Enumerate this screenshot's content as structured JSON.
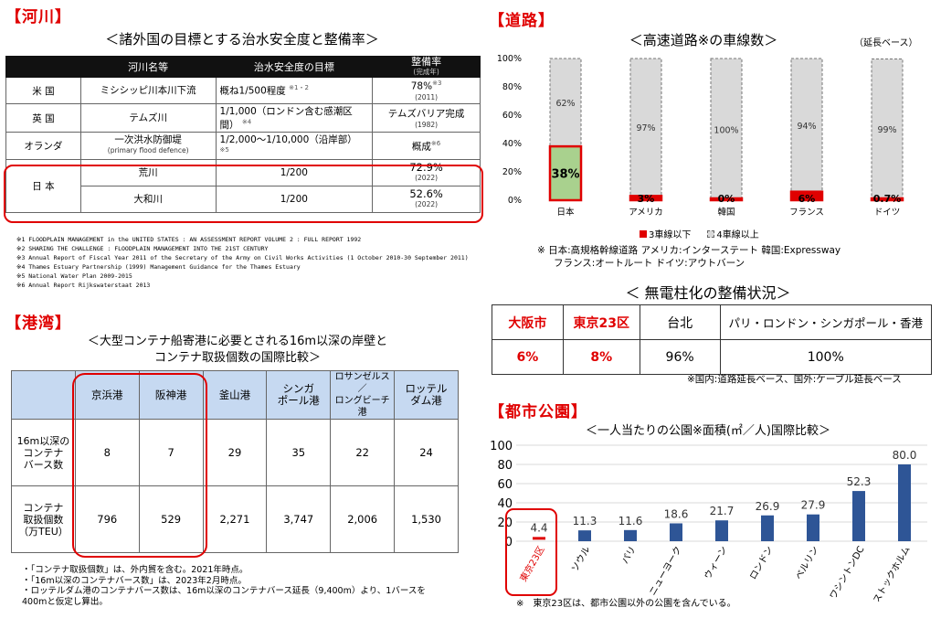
{
  "river": {
    "heading": "【河川】",
    "title": "＜諸外国の目標とする治水安全度と整備率＞",
    "headers": [
      "河川名等",
      "治水安全度の目標",
      "整備率",
      "(完成年)"
    ],
    "rows": [
      {
        "country": "米 国",
        "river": "ミシシッピ川本川下流",
        "river_sub": "",
        "target": "概ね1/500程度",
        "target_note": "※1・2",
        "rate": "78%",
        "rate_note": "※3",
        "year": "(2011)"
      },
      {
        "country": "英 国",
        "river": "テムズ川",
        "river_sub": "",
        "target": "1/1,000（ロンドン含む感潮区間）",
        "target_note": "※4",
        "rate": "テムズバリア完成",
        "rate_note": "",
        "year": "(1982)"
      },
      {
        "country": "オランダ",
        "river": "一次洪水防御堤",
        "river_sub": "(primary flood defence)",
        "target": "1/2,000～1/10,000（沿岸部）",
        "target_note": "※5",
        "rate": "概成",
        "rate_note": "※6",
        "year": ""
      }
    ],
    "japan": {
      "country": "日 本",
      "rows": [
        {
          "river": "荒川",
          "target": "1/200",
          "rate": "72.9%",
          "year": "(2022)"
        },
        {
          "river": "大和川",
          "target": "1/200",
          "rate": "52.6%",
          "year": "(2022)"
        }
      ]
    },
    "footnotes": [
      "※1 FLOODPLAIN MANAGEMENT in the UNITED STATES : AN ASSESSMENT REPORT VOLUME 2 : FULL REPORT 1992",
      "※2 SHARING THE CHALLENGE : FLOODPLAIN MANAGEMENT INTO THE 21ST CENTURY",
      "※3 Annual Report of Fiscal Year 2011 of the Secretary of the Army on Civil Works Activities (1 October 2010-30 September 2011)",
      "※4 Thames Estuary Partnership (1999) Management Guidance for the Thames Estuary",
      "※5 National Water Plan 2009-2015",
      "※6 Annual Report Rijkswaterstaat 2013"
    ]
  },
  "port": {
    "heading": "【港湾】",
    "title1": "＜大型コンテナ船寄港に必要とされる16m以深の岸壁と",
    "title2": "コンテナ取扱個数の国際比較＞",
    "ports": [
      "京浜港",
      "阪神港",
      "釜山港",
      "シンガ\nポール港",
      "ロサンゼルス\n／\nロングビーチ港",
      "ロッテル\nダム港"
    ],
    "row_labels": [
      "16m以深の\nコンテナ\nバース数",
      "コンテナ\n取扱個数\n（万TEU）"
    ],
    "berths": [
      "8",
      "7",
      "29",
      "35",
      "22",
      "24"
    ],
    "teu": [
      "796",
      "529",
      "2,271",
      "3,747",
      "2,006",
      "1,530"
    ],
    "notes": [
      "・「コンテナ取扱個数」は、外内貿を含む。2021年時点。",
      "・「16m以深のコンテナバース数」は、2023年2月時点。",
      "・ロッテルダム港のコンテナバース数は、16m以深のコンテナバース延長（9,400m）より、1バースを",
      "400mと仮定し算出。"
    ]
  },
  "road": {
    "heading": "【道路】",
    "title": "＜高速道路※の車線数＞",
    "unit": "（延長ベース）",
    "legend": [
      "3車線以下",
      "4車線以上"
    ],
    "notes": [
      "※ 日本:高規格幹線道路 アメリカ:インターステート 韓国:Expressway",
      "フランス:オートルート ドイツ:アウトバーン"
    ]
  },
  "chart_data": [
    {
      "type": "bar",
      "stacked": true,
      "title": "＜高速道路※の車線数＞",
      "categories": [
        "日本",
        "アメリカ",
        "韓国",
        "フランス",
        "ドイツ"
      ],
      "yticks": [
        "0%",
        "20%",
        "40%",
        "60%",
        "80%",
        "100%"
      ],
      "ylim": [
        0,
        100
      ],
      "series": [
        {
          "name": "3車線以下",
          "values": [
            38,
            3,
            0,
            6,
            0.7
          ],
          "labels": [
            "38%",
            "3%",
            "0%",
            "6%",
            "0.7%"
          ],
          "color": "#a9d18e"
        },
        {
          "name": "4車線以上",
          "values": [
            62,
            97,
            100,
            94,
            99
          ],
          "labels": [
            "62%",
            "97%",
            "100%",
            "94%",
            "99%"
          ],
          "color": "#d9d9d9"
        }
      ],
      "legend": "bottom"
    },
    {
      "type": "bar",
      "title": "＜一人当たりの公園※面積(㎡／人)国際比較＞",
      "categories": [
        "東京23区",
        "ソウル",
        "パリ",
        "ニューヨーク",
        "ウィーン",
        "ロンドン",
        "ベルリン",
        "ワシントンDC",
        "ストックホルム"
      ],
      "values": [
        4.4,
        11.3,
        11.6,
        18.6,
        21.7,
        26.9,
        27.9,
        52.3,
        80.0
      ],
      "labels": [
        "4.4",
        "11.3",
        "11.6",
        "18.6",
        "21.7",
        "26.9",
        "27.9",
        "52.3",
        "80.0"
      ],
      "yticks": [
        "0",
        "20",
        "40",
        "60",
        "80",
        "100"
      ],
      "ylim": [
        0,
        100
      ],
      "grid": true
    }
  ],
  "pole": {
    "title": "＜ 無電柱化の整備状況＞",
    "headers": [
      "大阪市",
      "東京23区",
      "台北",
      "パリ・ロンドン・シンガポール・香港"
    ],
    "values": [
      "6%",
      "8%",
      "96%",
      "100%"
    ],
    "note": "※国内:道路延長ベース、国外:ケーブル延長ベース"
  },
  "park": {
    "heading": "【都市公園】",
    "title": "＜一人当たりの公園※面積(㎡／人)国際比較＞",
    "note": "※　東京23区は、都市公園以外の公園を含んでいる。"
  },
  "colors": {
    "accent": "#e00000",
    "green": "#a9d18e",
    "gray": "#d9d9d9",
    "blue": "#2e5596",
    "header_blue": "#c6d9f1"
  }
}
